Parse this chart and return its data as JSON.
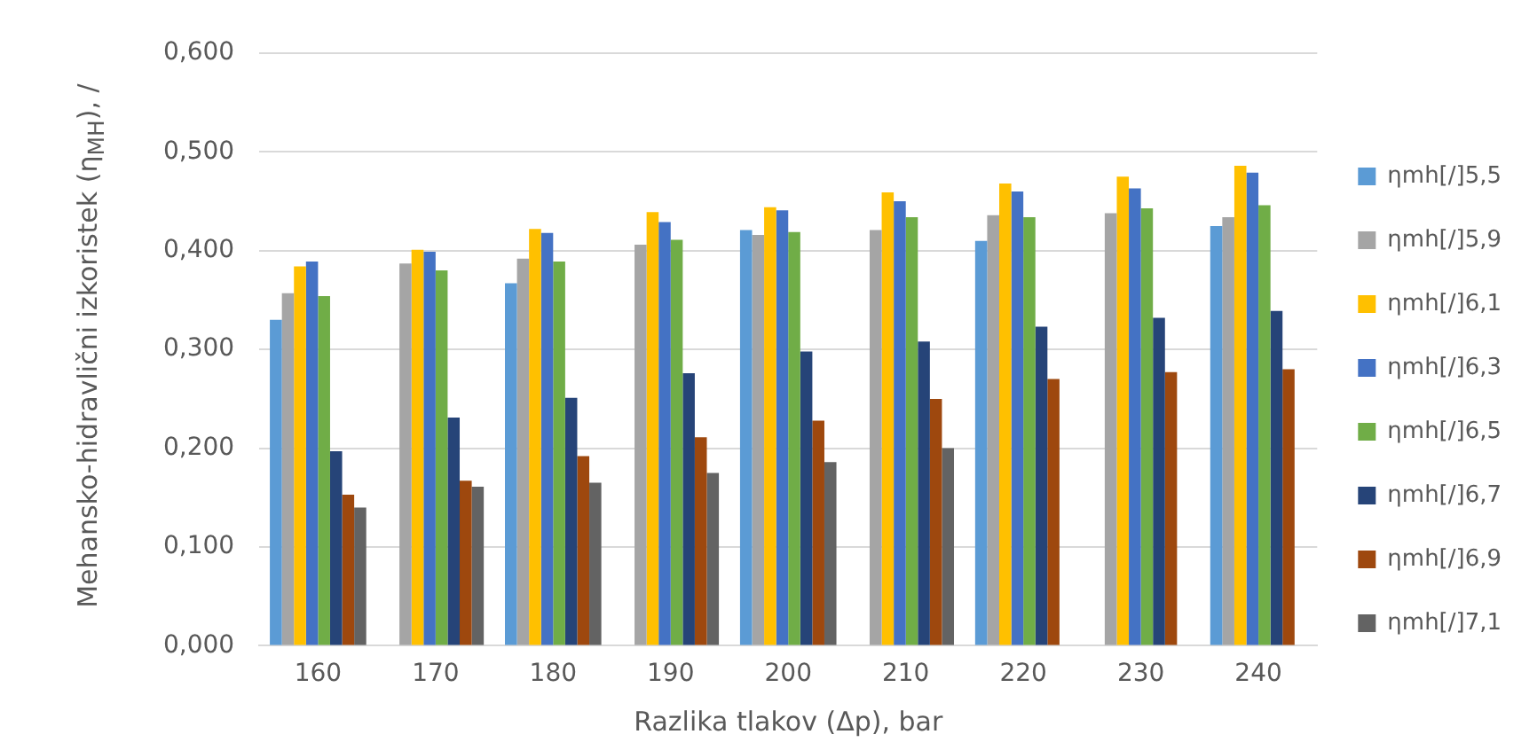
{
  "chart_data": {
    "type": "bar",
    "xlabel": "Razlika tlakov (Δp), bar",
    "ylabel": "Mehansko-hidravlični izkoristek (η$_{MH}$), /",
    "categories": [
      "160",
      "170",
      "180",
      "190",
      "200",
      "210",
      "220",
      "230",
      "240"
    ],
    "ylim": [
      0,
      0.6
    ],
    "yticks": [
      {
        "value": 0,
        "label": "0,000"
      },
      {
        "value": 0.1,
        "label": "0,100"
      },
      {
        "value": 0.2,
        "label": "0,200"
      },
      {
        "value": 0.3,
        "label": "0,300"
      },
      {
        "value": 0.4,
        "label": "0,400"
      },
      {
        "value": 0.5,
        "label": "0,500"
      },
      {
        "value": 0.6,
        "label": "0,600"
      }
    ],
    "grid": "y",
    "legend": "right",
    "series": [
      {
        "name": "ηmh[/]5,5",
        "color": "#5b9bd5",
        "values": [
          0.33,
          null,
          0.367,
          null,
          0.421,
          null,
          0.41,
          null,
          0.425
        ]
      },
      {
        "name": "ηmh[/]5,9",
        "color": "#a5a5a5",
        "values": [
          0.357,
          0.387,
          0.392,
          0.406,
          0.416,
          0.421,
          0.436,
          0.438,
          0.434
        ]
      },
      {
        "name": "ηmh[/]6,1",
        "color": "#ffc000",
        "values": [
          0.384,
          0.401,
          0.422,
          0.439,
          0.444,
          0.459,
          0.468,
          0.475,
          0.486
        ]
      },
      {
        "name": "ηmh[/]6,3",
        "color": "#4472c4",
        "values": [
          0.389,
          0.399,
          0.418,
          0.429,
          0.441,
          0.45,
          0.46,
          0.463,
          0.479
        ]
      },
      {
        "name": "ηmh[/]6,5",
        "color": "#70ad47",
        "values": [
          0.354,
          0.38,
          0.389,
          0.411,
          0.419,
          0.434,
          0.434,
          0.443,
          0.446
        ]
      },
      {
        "name": "ηmh[/]6,7",
        "color": "#264478",
        "values": [
          0.197,
          0.231,
          0.251,
          0.276,
          0.298,
          0.308,
          0.323,
          0.332,
          0.339
        ]
      },
      {
        "name": "ηmh[/]6,9",
        "color": "#9e480e",
        "values": [
          0.153,
          0.167,
          0.192,
          0.211,
          0.228,
          0.25,
          0.27,
          0.277,
          0.28
        ]
      },
      {
        "name": "ηmh[/]7,1",
        "color": "#636363",
        "values": [
          0.14,
          0.161,
          0.165,
          0.175,
          0.186,
          0.2,
          null,
          null,
          null
        ]
      }
    ]
  }
}
